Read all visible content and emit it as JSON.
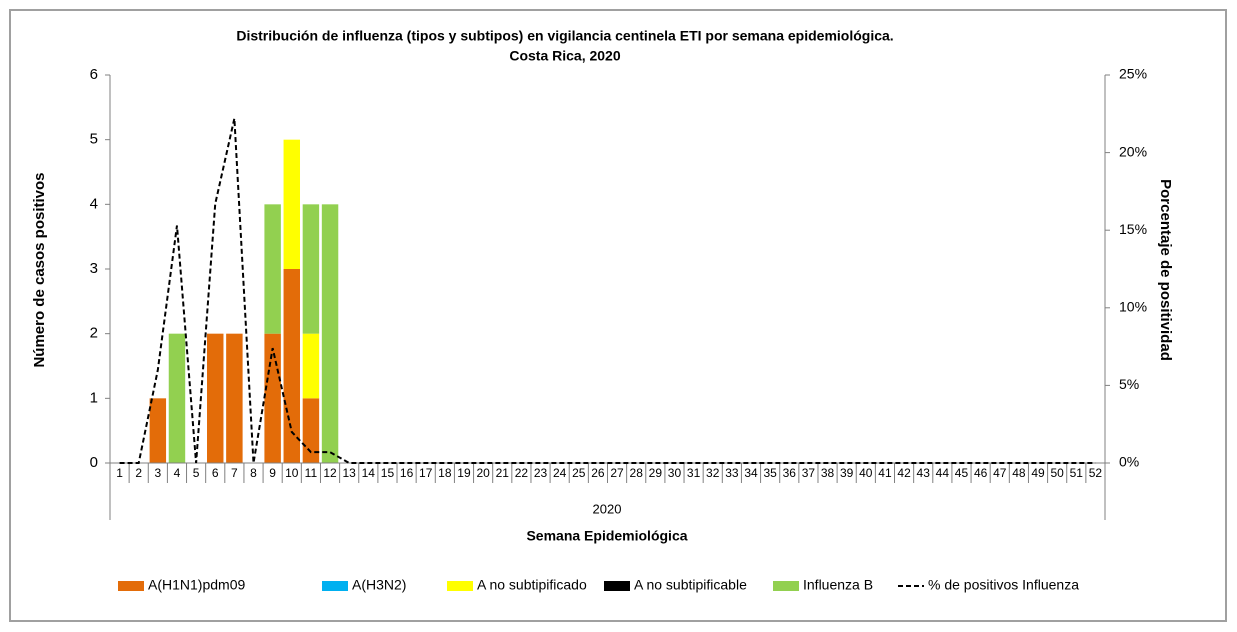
{
  "chart_data": {
    "type": "bar",
    "title": "Distribución de influenza (tipos y subtipos) en vigilancia centinela ETI por semana epidemiológica.",
    "subtitle": "Costa Rica, 2020",
    "x_label": "Semana Epidemiológica",
    "x_group": "2020",
    "y_label": "Número de casos positivos",
    "y2_label": "Porcentaje de positividad",
    "categories": [
      "1",
      "2",
      "3",
      "4",
      "5",
      "6",
      "7",
      "8",
      "9",
      "10",
      "11",
      "12",
      "13",
      "14",
      "15",
      "16",
      "17",
      "18",
      "19",
      "20",
      "21",
      "22",
      "23",
      "24",
      "25",
      "26",
      "27",
      "28",
      "29",
      "30",
      "31",
      "32",
      "33",
      "34",
      "35",
      "36",
      "37",
      "38",
      "39",
      "40",
      "41",
      "42",
      "43",
      "44",
      "45",
      "46",
      "47",
      "48",
      "49",
      "50",
      "51",
      "52"
    ],
    "ylim": [
      0,
      6
    ],
    "yticks": [
      0,
      1,
      2,
      3,
      4,
      5,
      6
    ],
    "y2lim": [
      0,
      25
    ],
    "y2ticks": [
      {
        "value": 0,
        "label": "0%"
      },
      {
        "value": 5,
        "label": "5%"
      },
      {
        "value": 10,
        "label": "10%"
      },
      {
        "value": 15,
        "label": "15%"
      },
      {
        "value": 20,
        "label": "20%"
      },
      {
        "value": 25,
        "label": "25%"
      }
    ],
    "series": [
      {
        "name": "A(H1N1)pdm09",
        "color": "#e36c09",
        "values": [
          0,
          0,
          1,
          0,
          0,
          2,
          2,
          0,
          2,
          3,
          1,
          0,
          0,
          0,
          0,
          0,
          0,
          0,
          0,
          0,
          0,
          0,
          0,
          0,
          0,
          0,
          0,
          0,
          0,
          0,
          0,
          0,
          0,
          0,
          0,
          0,
          0,
          0,
          0,
          0,
          0,
          0,
          0,
          0,
          0,
          0,
          0,
          0,
          0,
          0,
          0,
          0
        ]
      },
      {
        "name": "A(H3N2)",
        "color": "#00b0f0",
        "values": [
          0,
          0,
          0,
          0,
          0,
          0,
          0,
          0,
          0,
          0,
          0,
          0,
          0,
          0,
          0,
          0,
          0,
          0,
          0,
          0,
          0,
          0,
          0,
          0,
          0,
          0,
          0,
          0,
          0,
          0,
          0,
          0,
          0,
          0,
          0,
          0,
          0,
          0,
          0,
          0,
          0,
          0,
          0,
          0,
          0,
          0,
          0,
          0,
          0,
          0,
          0,
          0
        ]
      },
      {
        "name": "A no subtipificado",
        "color": "#ffff00",
        "values": [
          0,
          0,
          0,
          0,
          0,
          0,
          0,
          0,
          0,
          2,
          1,
          0,
          0,
          0,
          0,
          0,
          0,
          0,
          0,
          0,
          0,
          0,
          0,
          0,
          0,
          0,
          0,
          0,
          0,
          0,
          0,
          0,
          0,
          0,
          0,
          0,
          0,
          0,
          0,
          0,
          0,
          0,
          0,
          0,
          0,
          0,
          0,
          0,
          0,
          0,
          0,
          0
        ]
      },
      {
        "name": "A no subtipificable",
        "color": "#000000",
        "values": [
          0,
          0,
          0,
          0,
          0,
          0,
          0,
          0,
          0,
          0,
          0,
          0,
          0,
          0,
          0,
          0,
          0,
          0,
          0,
          0,
          0,
          0,
          0,
          0,
          0,
          0,
          0,
          0,
          0,
          0,
          0,
          0,
          0,
          0,
          0,
          0,
          0,
          0,
          0,
          0,
          0,
          0,
          0,
          0,
          0,
          0,
          0,
          0,
          0,
          0,
          0,
          0
        ]
      },
      {
        "name": "Influenza B",
        "color": "#92d050",
        "values": [
          0,
          0,
          0,
          2,
          0,
          0,
          0,
          0,
          2,
          0,
          2,
          4,
          0,
          0,
          0,
          0,
          0,
          0,
          0,
          0,
          0,
          0,
          0,
          0,
          0,
          0,
          0,
          0,
          0,
          0,
          0,
          0,
          0,
          0,
          0,
          0,
          0,
          0,
          0,
          0,
          0,
          0,
          0,
          0,
          0,
          0,
          0,
          0,
          0,
          0,
          0,
          0
        ]
      },
      {
        "name": "% de positivos Influenza",
        "color": "#000000",
        "type": "line",
        "axis": "y2",
        "values": [
          0,
          0,
          6,
          15.3,
          0,
          16.7,
          22.2,
          0,
          7.4,
          2,
          0.7,
          0.7,
          0,
          0,
          0,
          0,
          0,
          0,
          0,
          0,
          0,
          0,
          0,
          0,
          0,
          0,
          0,
          0,
          0,
          0,
          0,
          0,
          0,
          0,
          0,
          0,
          0,
          0,
          0,
          0,
          0,
          0,
          0,
          0,
          0,
          0,
          0,
          0,
          0,
          0,
          0,
          0
        ]
      }
    ]
  }
}
